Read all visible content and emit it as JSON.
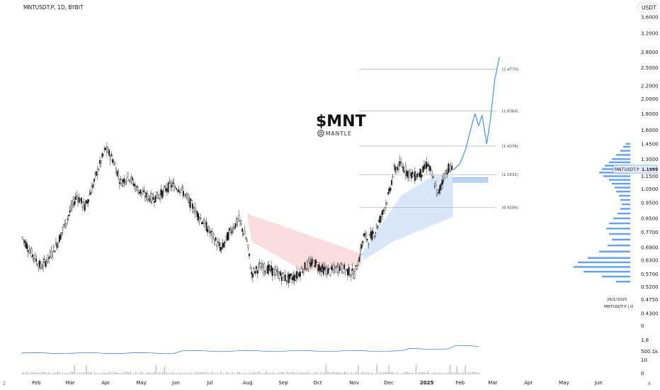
{
  "header": {
    "symbol_line": "MNTUSDT.P, 1D, BYBIT",
    "currency": "USDT"
  },
  "logo": {
    "title": "$MNT",
    "subtitle": "MANTLE",
    "icon": "mantle-logo-icon"
  },
  "price_tag": {
    "symbol": "MNTUSDT.P",
    "value": "1.1999"
  },
  "info": {
    "date": "26/1/2025",
    "series_label": "MNTUSDT.P | D"
  },
  "corner_labels": {
    "left": "Z",
    "right": "A"
  },
  "colors": {
    "candle": "#1f1f1f",
    "fib_line": "#9aa0a6",
    "projection": "#4a90e2",
    "profile": "#2f80ed",
    "red_band": "#f4b4b4",
    "blue_band": "#a9c9f0"
  },
  "chart_data": {
    "type": "candlestick",
    "ylim": [
      0.43,
      3.6
    ],
    "y_scale": "log",
    "y_ticks": [
      "3.6000",
      "3.2000",
      "2.8000",
      "2.5000",
      "2.2000",
      "2.0000",
      "1.8000",
      "1.6000",
      "1.4500",
      "1.3000",
      "1.1500",
      "1.0500",
      "0.9500",
      "0.8500",
      "0.7700",
      "0.6900",
      "0.6300",
      "0.5700",
      "0.5200",
      "0.4750",
      "0.4300"
    ],
    "x_ticks": [
      "Feb",
      "Mar",
      "Apr",
      "May",
      "Jun",
      "Jul",
      "Aug",
      "Sep",
      "Oct",
      "Nov",
      "Dec",
      "2025",
      "Feb",
      "Mar",
      "Apr",
      "May",
      "Jun"
    ],
    "fib_levels": [
      {
        "value": 2.477,
        "label": "(2.4770)"
      },
      {
        "value": 1.8364,
        "label": "(1.8364)"
      },
      {
        "value": 1.4276,
        "label": "(1.4276)"
      },
      {
        "value": 1.1632,
        "label": "(1.1632)"
      },
      {
        "value": 0.9206,
        "label": "(0.9206)"
      }
    ],
    "price_path": [
      [
        "2024-01-20",
        0.74
      ],
      [
        "2024-01-28",
        0.66
      ],
      [
        "2024-02-05",
        0.6
      ],
      [
        "2024-02-12",
        0.64
      ],
      [
        "2024-02-20",
        0.72
      ],
      [
        "2024-02-28",
        0.85
      ],
      [
        "2024-03-07",
        1.0
      ],
      [
        "2024-03-14",
        0.92
      ],
      [
        "2024-03-20",
        1.05
      ],
      [
        "2024-03-27",
        1.25
      ],
      [
        "2024-04-01",
        1.4
      ],
      [
        "2024-04-07",
        1.3
      ],
      [
        "2024-04-14",
        1.1
      ],
      [
        "2024-04-21",
        1.15
      ],
      [
        "2024-04-28",
        1.05
      ],
      [
        "2024-05-05",
        1.0
      ],
      [
        "2024-05-12",
        0.98
      ],
      [
        "2024-05-20",
        1.02
      ],
      [
        "2024-05-27",
        1.08
      ],
      [
        "2024-06-05",
        1.05
      ],
      [
        "2024-06-12",
        0.96
      ],
      [
        "2024-06-19",
        0.88
      ],
      [
        "2024-06-26",
        0.81
      ],
      [
        "2024-07-04",
        0.73
      ],
      [
        "2024-07-10",
        0.68
      ],
      [
        "2024-07-18",
        0.78
      ],
      [
        "2024-07-25",
        0.84
      ],
      [
        "2024-08-01",
        0.72
      ],
      [
        "2024-08-05",
        0.57
      ],
      [
        "2024-08-12",
        0.6
      ],
      [
        "2024-08-20",
        0.59
      ],
      [
        "2024-08-28",
        0.57
      ],
      [
        "2024-09-05",
        0.55
      ],
      [
        "2024-09-12",
        0.56
      ],
      [
        "2024-09-20",
        0.6
      ],
      [
        "2024-09-28",
        0.62
      ],
      [
        "2024-10-05",
        0.59
      ],
      [
        "2024-10-12",
        0.58
      ],
      [
        "2024-10-20",
        0.6
      ],
      [
        "2024-10-28",
        0.58
      ],
      [
        "2024-11-02",
        0.57
      ],
      [
        "2024-11-06",
        0.64
      ],
      [
        "2024-11-10",
        0.75
      ],
      [
        "2024-11-14",
        0.73
      ],
      [
        "2024-11-20",
        0.78
      ],
      [
        "2024-11-26",
        0.88
      ],
      [
        "2024-12-02",
        1.02
      ],
      [
        "2024-12-06",
        1.2
      ],
      [
        "2024-12-12",
        1.25
      ],
      [
        "2024-12-18",
        1.18
      ],
      [
        "2024-12-24",
        1.15
      ],
      [
        "2024-12-30",
        1.18
      ],
      [
        "2025-01-04",
        1.26
      ],
      [
        "2025-01-09",
        1.12
      ],
      [
        "2025-01-13",
        1.0
      ],
      [
        "2025-01-18",
        1.15
      ],
      [
        "2025-01-22",
        1.22
      ],
      [
        "2025-01-26",
        1.2
      ]
    ],
    "projection_path": [
      [
        "2025-01-26",
        1.2
      ],
      [
        "2025-02-01",
        1.26
      ],
      [
        "2025-02-06",
        1.4
      ],
      [
        "2025-02-10",
        1.6
      ],
      [
        "2025-02-14",
        1.8
      ],
      [
        "2025-02-17",
        1.65
      ],
      [
        "2025-02-20",
        1.78
      ],
      [
        "2025-02-24",
        1.45
      ],
      [
        "2025-02-27",
        1.7
      ],
      [
        "2025-03-03",
        2.3
      ],
      [
        "2025-03-07",
        2.7
      ]
    ],
    "annotations": [
      {
        "type": "zone",
        "from": "2025-01-26",
        "to": "2025-02-25",
        "y": [
          1.1,
          1.14
        ]
      }
    ]
  }
}
